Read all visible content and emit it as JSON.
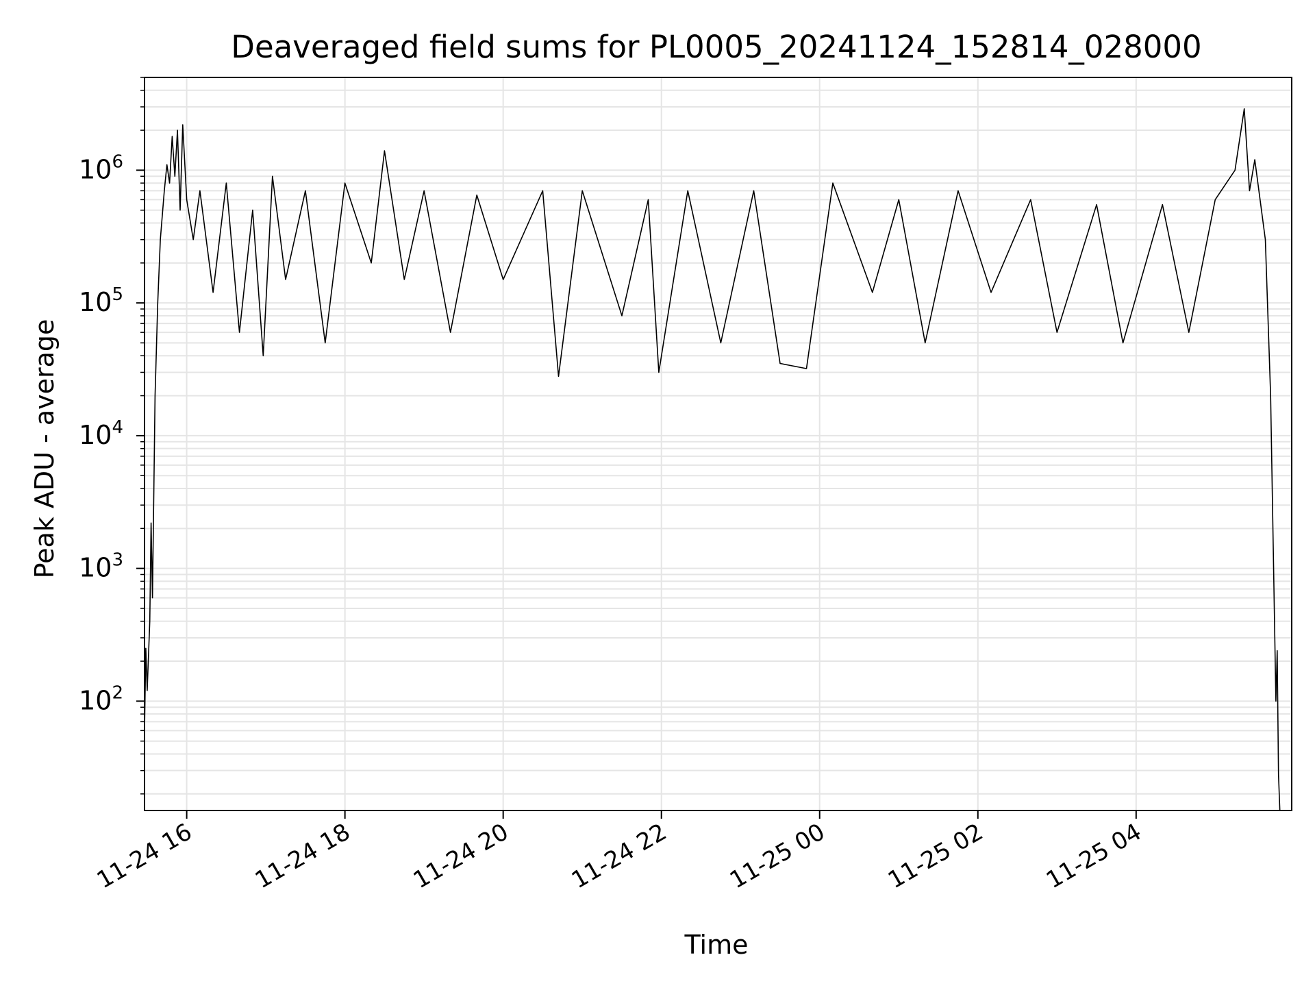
{
  "chart_data": {
    "type": "line",
    "title": "Deaveraged field sums for PL0005_20241124_152814_028000",
    "xlabel": "Time",
    "ylabel": "Peak ADU - average",
    "y_scale": "log",
    "y_tick_base": "10",
    "y_ticks": [
      {
        "value": 100,
        "exponent": "2"
      },
      {
        "value": 1000,
        "exponent": "3"
      },
      {
        "value": 10000,
        "exponent": "4"
      },
      {
        "value": 100000,
        "exponent": "5"
      },
      {
        "value": 1000000,
        "exponent": "6"
      }
    ],
    "ylim": [
      15,
      5000000
    ],
    "xlim": [
      "2024-11-24 15:28",
      "2024-11-25 05:58"
    ],
    "x_ticks": [
      {
        "label": "11-24 16",
        "time": "2024-11-24 16:00"
      },
      {
        "label": "11-24 18",
        "time": "2024-11-24 18:00"
      },
      {
        "label": "11-24 20",
        "time": "2024-11-24 20:00"
      },
      {
        "label": "11-24 22",
        "time": "2024-11-24 22:00"
      },
      {
        "label": "11-25 00",
        "time": "2024-11-25 00:00"
      },
      {
        "label": "11-25 02",
        "time": "2024-11-25 02:00"
      },
      {
        "label": "11-25 04",
        "time": "2024-11-25 04:00"
      }
    ],
    "grid": true,
    "line_color": "#000000",
    "grid_color": "#e5e5e5",
    "series": [
      {
        "points": [
          [
            "2024-11-24 15:28",
            60
          ],
          [
            "2024-11-24 15:29",
            250
          ],
          [
            "2024-11-24 15:30",
            120
          ],
          [
            "2024-11-24 15:32",
            400
          ],
          [
            "2024-11-24 15:33",
            2200
          ],
          [
            "2024-11-24 15:34",
            600
          ],
          [
            "2024-11-24 15:36",
            20000
          ],
          [
            "2024-11-24 15:38",
            100000
          ],
          [
            "2024-11-24 15:40",
            300000
          ],
          [
            "2024-11-24 15:43",
            700000
          ],
          [
            "2024-11-24 15:45",
            1100000
          ],
          [
            "2024-11-24 15:47",
            800000
          ],
          [
            "2024-11-24 15:49",
            1800000
          ],
          [
            "2024-11-24 15:51",
            900000
          ],
          [
            "2024-11-24 15:53",
            2000000
          ],
          [
            "2024-11-24 15:55",
            500000
          ],
          [
            "2024-11-24 15:57",
            2200000
          ],
          [
            "2024-11-24 16:00",
            600000
          ],
          [
            "2024-11-24 16:05",
            300000
          ],
          [
            "2024-11-24 16:10",
            700000
          ],
          [
            "2024-11-24 16:20",
            120000
          ],
          [
            "2024-11-24 16:30",
            800000
          ],
          [
            "2024-11-24 16:40",
            60000
          ],
          [
            "2024-11-24 16:50",
            500000
          ],
          [
            "2024-11-24 16:58",
            40000
          ],
          [
            "2024-11-24 17:05",
            900000
          ],
          [
            "2024-11-24 17:15",
            150000
          ],
          [
            "2024-11-24 17:30",
            700000
          ],
          [
            "2024-11-24 17:45",
            50000
          ],
          [
            "2024-11-24 18:00",
            800000
          ],
          [
            "2024-11-24 18:20",
            200000
          ],
          [
            "2024-11-24 18:30",
            1400000
          ],
          [
            "2024-11-24 18:45",
            150000
          ],
          [
            "2024-11-24 19:00",
            700000
          ],
          [
            "2024-11-24 19:20",
            60000
          ],
          [
            "2024-11-24 19:40",
            650000
          ],
          [
            "2024-11-24 20:00",
            150000
          ],
          [
            "2024-11-24 20:30",
            700000
          ],
          [
            "2024-11-24 20:42",
            28000
          ],
          [
            "2024-11-24 21:00",
            700000
          ],
          [
            "2024-11-24 21:30",
            80000
          ],
          [
            "2024-11-24 21:50",
            600000
          ],
          [
            "2024-11-24 21:58",
            30000
          ],
          [
            "2024-11-24 22:20",
            700000
          ],
          [
            "2024-11-24 22:45",
            50000
          ],
          [
            "2024-11-24 23:10",
            700000
          ],
          [
            "2024-11-24 23:30",
            35000
          ],
          [
            "2024-11-24 23:50",
            32000
          ],
          [
            "2024-11-25 00:10",
            800000
          ],
          [
            "2024-11-25 00:40",
            120000
          ],
          [
            "2024-11-25 01:00",
            600000
          ],
          [
            "2024-11-25 01:20",
            50000
          ],
          [
            "2024-11-25 01:45",
            700000
          ],
          [
            "2024-11-25 02:10",
            120000
          ],
          [
            "2024-11-25 02:40",
            600000
          ],
          [
            "2024-11-25 03:00",
            60000
          ],
          [
            "2024-11-25 03:30",
            550000
          ],
          [
            "2024-11-25 03:50",
            50000
          ],
          [
            "2024-11-25 04:20",
            550000
          ],
          [
            "2024-11-25 04:40",
            60000
          ],
          [
            "2024-11-25 05:00",
            600000
          ],
          [
            "2024-11-25 05:15",
            1000000
          ],
          [
            "2024-11-25 05:22",
            2900000
          ],
          [
            "2024-11-25 05:26",
            700000
          ],
          [
            "2024-11-25 05:30",
            1200000
          ],
          [
            "2024-11-25 05:34",
            600000
          ],
          [
            "2024-11-25 05:38",
            300000
          ],
          [
            "2024-11-25 05:42",
            20000
          ],
          [
            "2024-11-25 05:46",
            100
          ],
          [
            "2024-11-25 05:47",
            240
          ],
          [
            "2024-11-25 05:48",
            28
          ],
          [
            "2024-11-25 05:49",
            15
          ]
        ]
      }
    ]
  }
}
